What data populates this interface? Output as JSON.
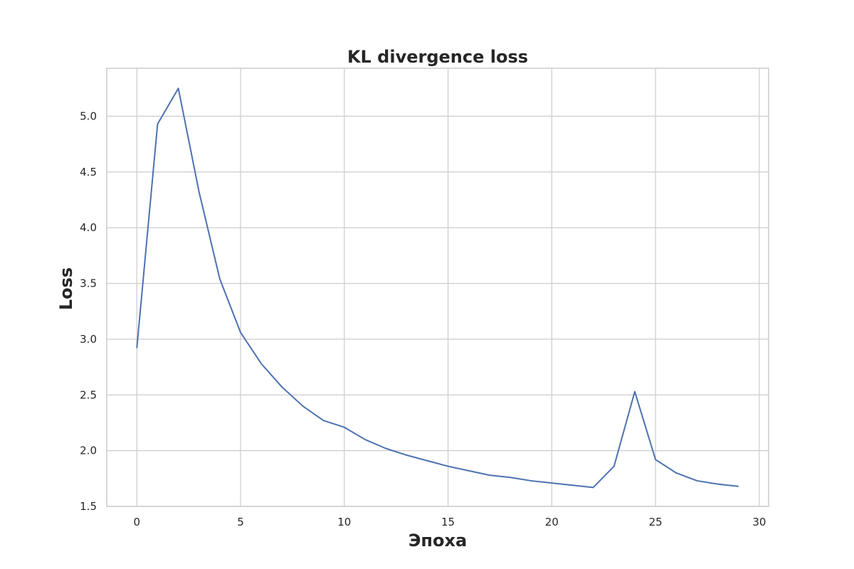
{
  "chart_data": {
    "type": "line",
    "title": "KL divergence loss",
    "xlabel": "Эпоха",
    "ylabel": "Loss",
    "xlim": [
      -1.45,
      30.45
    ],
    "ylim": [
      1.5,
      5.43
    ],
    "x_ticks": [
      0,
      5,
      10,
      15,
      20,
      25,
      30
    ],
    "x_tick_labels": [
      "0",
      "5",
      "10",
      "15",
      "20",
      "25",
      "30"
    ],
    "y_ticks": [
      1.5,
      2.0,
      2.5,
      3.0,
      3.5,
      4.0,
      4.5,
      5.0
    ],
    "y_tick_labels": [
      "1.5",
      "2.0",
      "2.5",
      "3.0",
      "3.5",
      "4.0",
      "4.5",
      "5.0"
    ],
    "grid": true,
    "series": [
      {
        "name": "KL divergence loss",
        "color": "#4c72b0",
        "x": [
          0,
          1,
          2,
          3,
          4,
          5,
          6,
          7,
          8,
          9,
          10,
          11,
          12,
          13,
          14,
          15,
          16,
          17,
          18,
          19,
          20,
          21,
          22,
          23,
          24,
          25,
          26,
          27,
          28,
          29
        ],
        "values": [
          2.92,
          4.93,
          5.25,
          4.32,
          3.54,
          3.06,
          2.78,
          2.57,
          2.4,
          2.27,
          2.21,
          2.1,
          2.02,
          1.96,
          1.91,
          1.86,
          1.82,
          1.78,
          1.76,
          1.73,
          1.71,
          1.69,
          1.67,
          1.86,
          2.53,
          1.92,
          1.8,
          1.73,
          1.7,
          1.68
        ]
      }
    ]
  }
}
